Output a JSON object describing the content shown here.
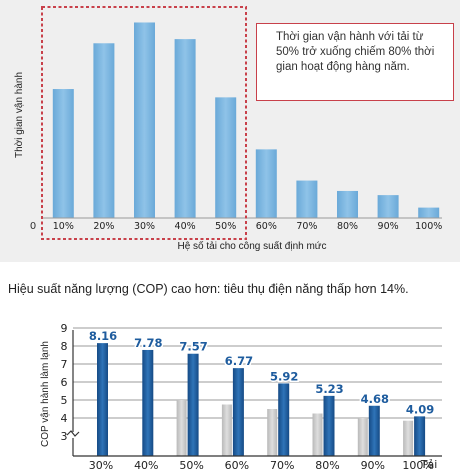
{
  "caption": "Hiệu suất năng lượng (COP) cao hơn: tiêu thụ điện năng thấp hơn 14%.",
  "chart_data": [
    {
      "type": "bar",
      "categories": [
        "10%",
        "20%",
        "30%",
        "40%",
        "50%",
        "60%",
        "70%",
        "80%",
        "90%",
        "100%"
      ],
      "values": [
        62,
        84,
        94,
        86,
        58,
        33,
        18,
        13,
        11,
        5
      ],
      "ylim": [
        0,
        100
      ],
      "xlabel": "Hệ số tải cho công suất định mức",
      "ylabel": "Thời gian vận hành",
      "origin_label": "0",
      "annotation": "Thời gian vận hành với tải từ 50% trở xuống chiếm 80% thời gian hoạt động hàng năm.",
      "bar_color": "#7fb8e2",
      "highlight_color": "#c8404a",
      "highlight_range": [
        "10%",
        "50%"
      ],
      "grid": false
    },
    {
      "type": "bar",
      "categories": [
        "30%",
        "40%",
        "50%",
        "60%",
        "70%",
        "80%",
        "90%",
        "100%"
      ],
      "xlabel": "Tải",
      "ylabel": "COP vận hành làm lạnh",
      "ylim": [
        3,
        9
      ],
      "yticks": [
        "3",
        "4",
        "5",
        "6",
        "7",
        "8",
        "9"
      ],
      "axis_break": true,
      "grid": true,
      "series": [
        {
          "values": [
            null,
            null,
            5.0,
            4.75,
            4.5,
            4.25,
            4.0,
            3.85
          ],
          "color": "#c9c9c9"
        },
        {
          "values": [
            8.16,
            7.78,
            7.57,
            6.77,
            5.92,
            5.23,
            4.68,
            4.09
          ],
          "color": "#1e5c9e",
          "labels": [
            "8.16",
            "7.78",
            "7.57",
            "6.77",
            "5.92",
            "5.23",
            "4.68",
            "4.09"
          ]
        }
      ]
    }
  ]
}
